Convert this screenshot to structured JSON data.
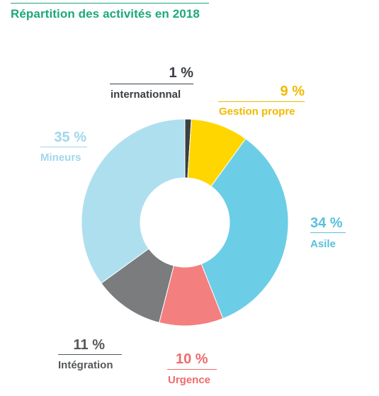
{
  "title": "Répartition des activités en 2018",
  "colors": {
    "title": "#1aa97a"
  },
  "chart_data": {
    "type": "pie",
    "donut": true,
    "title": "Répartition des activités en 2018",
    "slices": [
      {
        "label": "internationnal",
        "pct_label": "1 %",
        "value": 1,
        "color": "#3a3f44",
        "text_color": "#3a3f44"
      },
      {
        "label": "Gestion propre",
        "pct_label": "9 %",
        "value": 9,
        "color": "#ffd600",
        "text_color": "#f2b900"
      },
      {
        "label": "Asile",
        "pct_label": "34 %",
        "value": 34,
        "color": "#6ccde6",
        "text_color": "#5bbfdc"
      },
      {
        "label": "Urgence",
        "pct_label": "10 %",
        "value": 10,
        "color": "#f47f7f",
        "text_color": "#ef6b6b"
      },
      {
        "label": "Intégration",
        "pct_label": "11 %",
        "value": 11,
        "color": "#7a7c7e",
        "text_color": "#55585b"
      },
      {
        "label": "Mineurs",
        "pct_label": "35 %",
        "value": 35,
        "color": "#aedfef",
        "text_color": "#a0d7ea"
      }
    ]
  }
}
